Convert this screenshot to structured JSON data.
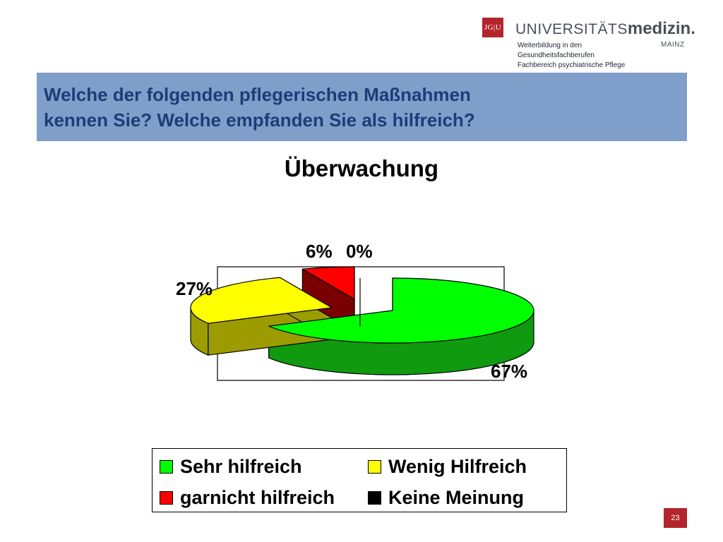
{
  "header": {
    "logo_mark": "JG|U",
    "logo_word_light": "UNIVERSITÄTS",
    "logo_word_bold": "medizin.",
    "logo_city": "MAINZ",
    "dept_lines": [
      "Weiterbildung in den",
      "Gesundheitsfachberufen",
      "Fachbereich psychiatrische Pflege"
    ]
  },
  "slide": {
    "title_line1": "Welche der folgenden pflegerischen Maßnahmen",
    "title_line2": "kennen Sie? Welche empfanden Sie als hilfreich?",
    "page_number": "23"
  },
  "colors": {
    "title_band": "#7f9fca",
    "title_text": "#1e3c78",
    "brand_red": "#b3242b"
  },
  "chart_data": {
    "type": "pie",
    "title": "Überwachung",
    "legend_position": "bottom",
    "slices": [
      {
        "label": "Sehr hilfreich",
        "value": 67,
        "display": "67%",
        "color": "#00ff00",
        "side_color": "#109a10"
      },
      {
        "label": "Wenig Hilfreich",
        "value": 27,
        "display": "27%",
        "color": "#ffff00",
        "side_color": "#9c9c00"
      },
      {
        "label": "garnicht hilfreich",
        "value": 6,
        "display": "6%",
        "color": "#ff0000",
        "side_color": "#7a0000"
      },
      {
        "label": "Keine Meinung",
        "value": 0,
        "display": "0%",
        "color": "#000000",
        "side_color": "#000000"
      }
    ]
  }
}
